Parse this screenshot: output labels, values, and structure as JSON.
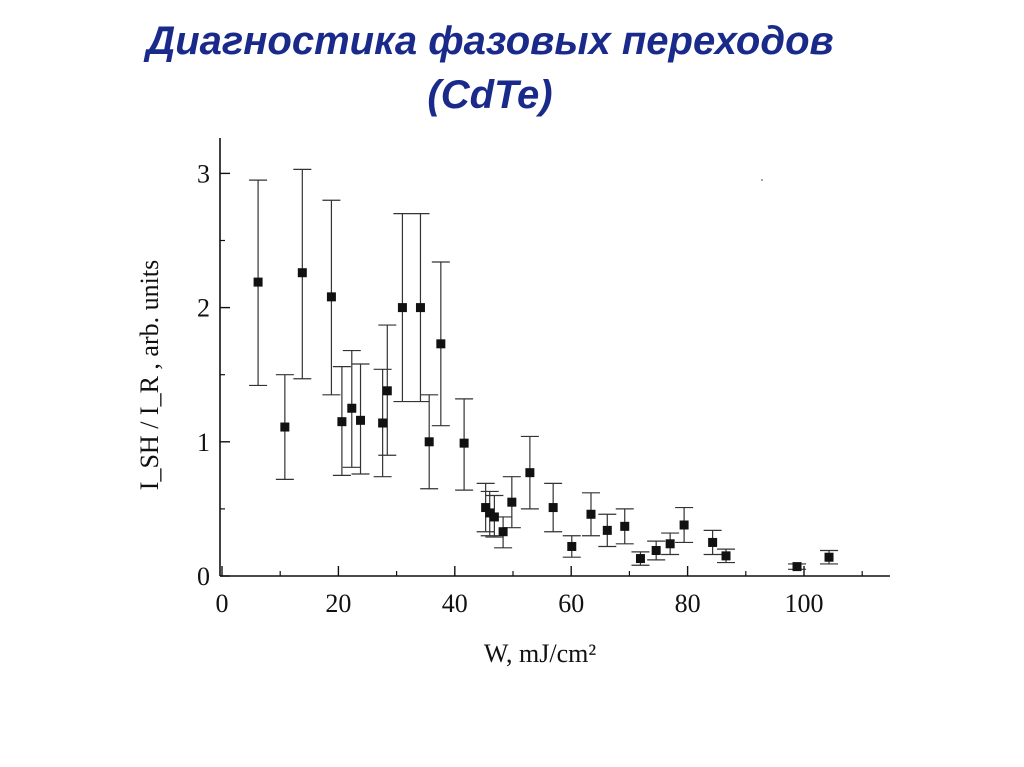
{
  "slide": {
    "title_line1": "Диагностика фазовых переходов",
    "title_line2": "(CdTe)"
  },
  "chart_data": {
    "type": "scatter",
    "title": "",
    "xlabel": "W, mJ/cm²",
    "ylabel": "I_SH / I_R , arb. units",
    "xlim": [
      0,
      115
    ],
    "ylim": [
      0,
      3.3
    ],
    "x_ticks": [
      0,
      20,
      40,
      60,
      80,
      100
    ],
    "y_ticks": [
      0,
      1,
      2,
      3
    ],
    "grid": false,
    "error_bars": true,
    "points": [
      {
        "x": 6.2,
        "y": 2.19,
        "lo": 1.42,
        "hi": 2.95
      },
      {
        "x": 10.8,
        "y": 1.11,
        "lo": 0.72,
        "hi": 1.5
      },
      {
        "x": 13.8,
        "y": 2.26,
        "lo": 1.47,
        "hi": 3.03
      },
      {
        "x": 18.8,
        "y": 2.08,
        "lo": 1.35,
        "hi": 2.8
      },
      {
        "x": 20.6,
        "y": 1.15,
        "lo": 0.75,
        "hi": 1.56
      },
      {
        "x": 22.3,
        "y": 1.25,
        "lo": 0.81,
        "hi": 1.68
      },
      {
        "x": 23.8,
        "y": 1.16,
        "lo": 0.76,
        "hi": 1.58
      },
      {
        "x": 27.6,
        "y": 1.14,
        "lo": 0.74,
        "hi": 1.54
      },
      {
        "x": 28.4,
        "y": 1.38,
        "lo": 0.9,
        "hi": 1.87
      },
      {
        "x": 31.0,
        "y": 2.0,
        "lo": 1.3,
        "hi": 2.7
      },
      {
        "x": 34.1,
        "y": 2.0,
        "lo": 1.3,
        "hi": 2.7
      },
      {
        "x": 35.6,
        "y": 1.0,
        "lo": 0.65,
        "hi": 1.35
      },
      {
        "x": 37.6,
        "y": 1.73,
        "lo": 1.12,
        "hi": 2.34
      },
      {
        "x": 41.6,
        "y": 0.99,
        "lo": 0.64,
        "hi": 1.32
      },
      {
        "x": 45.3,
        "y": 0.51,
        "lo": 0.33,
        "hi": 0.69
      },
      {
        "x": 46.0,
        "y": 0.47,
        "lo": 0.3,
        "hi": 0.63
      },
      {
        "x": 46.8,
        "y": 0.44,
        "lo": 0.29,
        "hi": 0.6
      },
      {
        "x": 48.3,
        "y": 0.33,
        "lo": 0.21,
        "hi": 0.44
      },
      {
        "x": 49.8,
        "y": 0.55,
        "lo": 0.36,
        "hi": 0.74
      },
      {
        "x": 52.9,
        "y": 0.77,
        "lo": 0.5,
        "hi": 1.04
      },
      {
        "x": 56.9,
        "y": 0.51,
        "lo": 0.33,
        "hi": 0.69
      },
      {
        "x": 60.1,
        "y": 0.22,
        "lo": 0.14,
        "hi": 0.3
      },
      {
        "x": 63.4,
        "y": 0.46,
        "lo": 0.3,
        "hi": 0.62
      },
      {
        "x": 66.2,
        "y": 0.34,
        "lo": 0.22,
        "hi": 0.46
      },
      {
        "x": 69.2,
        "y": 0.37,
        "lo": 0.24,
        "hi": 0.5
      },
      {
        "x": 71.9,
        "y": 0.13,
        "lo": 0.08,
        "hi": 0.18
      },
      {
        "x": 74.6,
        "y": 0.19,
        "lo": 0.12,
        "hi": 0.26
      },
      {
        "x": 77.0,
        "y": 0.24,
        "lo": 0.16,
        "hi": 0.32
      },
      {
        "x": 79.4,
        "y": 0.38,
        "lo": 0.25,
        "hi": 0.51
      },
      {
        "x": 84.3,
        "y": 0.25,
        "lo": 0.16,
        "hi": 0.34
      },
      {
        "x": 86.6,
        "y": 0.15,
        "lo": 0.1,
        "hi": 0.2
      },
      {
        "x": 98.8,
        "y": 0.07,
        "lo": 0.05,
        "hi": 0.09
      },
      {
        "x": 104.3,
        "y": 0.14,
        "lo": 0.09,
        "hi": 0.19
      }
    ]
  }
}
